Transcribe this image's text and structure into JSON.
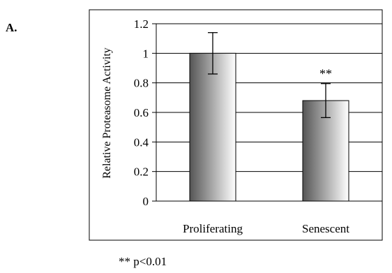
{
  "panel_label": "A.",
  "footnote": "** p<0.01",
  "chart_data": {
    "type": "bar",
    "categories": [
      "Proliferating",
      "Senescent"
    ],
    "values": [
      1.0,
      0.68
    ],
    "error": [
      0.14,
      0.115
    ],
    "annotations": [
      "",
      "**"
    ],
    "title": "",
    "xlabel": "",
    "ylabel": "Relative Proteasome Activity",
    "ylim": [
      0,
      1.2
    ],
    "yticks": [
      "0",
      "0.2",
      "0.4",
      "0.6",
      "0.8",
      "1",
      "1.2"
    ],
    "grid": true,
    "legend": "none",
    "bar_gradient": [
      "#555555",
      "#ffffff"
    ]
  }
}
